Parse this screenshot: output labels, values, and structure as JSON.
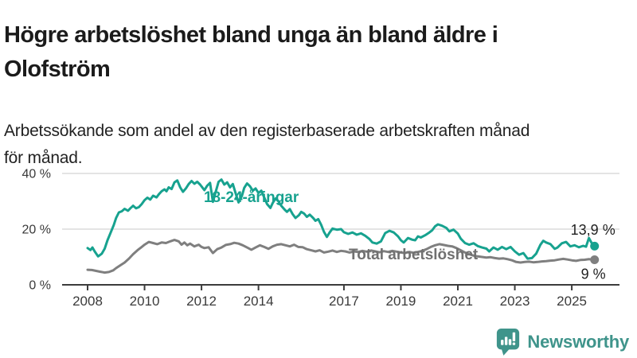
{
  "header": {
    "title": "Högre arbetslöshet bland unga än bland äldre i\nOlofström",
    "subtitle": "Arbetssökande som andel av den registerbaserade arbetskraften månad\nför månad."
  },
  "chart_data": {
    "type": "line",
    "unit": "%",
    "grid": "horizontal-only",
    "x_axis": {
      "ticks": [
        2008,
        2010,
        2012,
        2014,
        2017,
        2019,
        2021,
        2023,
        2025
      ],
      "tick_labels": [
        "2008",
        "2010",
        "2012",
        "2014",
        "2017",
        "2019",
        "2021",
        "2023",
        "2025"
      ],
      "range": [
        2007.1,
        2026.7
      ]
    },
    "y_axis": {
      "ticks": [
        0,
        20,
        40
      ],
      "tick_suffix": " %",
      "range": [
        0,
        45
      ]
    },
    "series": [
      {
        "name": "18-24-åringar",
        "color": "#17a28f",
        "label_color": "#17a28f",
        "label_at": {
          "year": 2012.08,
          "value": 29.7
        },
        "end_label": "13,9 %",
        "end_label_placement": "above",
        "end_value": 13.9,
        "points": [
          [
            2008.0,
            13.2
          ],
          [
            2008.1,
            12.5
          ],
          [
            2008.17,
            13.4
          ],
          [
            2008.25,
            12.0
          ],
          [
            2008.37,
            10.2
          ],
          [
            2008.5,
            11.2
          ],
          [
            2008.6,
            13.0
          ],
          [
            2008.7,
            16.0
          ],
          [
            2008.8,
            18.5
          ],
          [
            2008.92,
            21.5
          ],
          [
            2009.0,
            24.0
          ],
          [
            2009.1,
            26.0
          ],
          [
            2009.2,
            26.4
          ],
          [
            2009.3,
            27.3
          ],
          [
            2009.42,
            26.6
          ],
          [
            2009.5,
            27.5
          ],
          [
            2009.6,
            28.4
          ],
          [
            2009.7,
            27.5
          ],
          [
            2009.8,
            27.9
          ],
          [
            2009.9,
            29.0
          ],
          [
            2010.0,
            30.4
          ],
          [
            2010.1,
            31.3
          ],
          [
            2010.2,
            30.6
          ],
          [
            2010.3,
            32.0
          ],
          [
            2010.42,
            31.4
          ],
          [
            2010.5,
            32.5
          ],
          [
            2010.6,
            33.6
          ],
          [
            2010.7,
            34.3
          ],
          [
            2010.77,
            33.6
          ],
          [
            2010.85,
            35.0
          ],
          [
            2010.95,
            34.4
          ],
          [
            2011.05,
            36.8
          ],
          [
            2011.15,
            37.5
          ],
          [
            2011.25,
            35.0
          ],
          [
            2011.35,
            33.4
          ],
          [
            2011.45,
            34.6
          ],
          [
            2011.55,
            36.2
          ],
          [
            2011.65,
            37.3
          ],
          [
            2011.75,
            36.3
          ],
          [
            2011.85,
            37.0
          ],
          [
            2011.95,
            36.0
          ],
          [
            2012.1,
            34.0
          ],
          [
            2012.2,
            35.6
          ],
          [
            2012.3,
            36.6
          ],
          [
            2012.4,
            29.8
          ],
          [
            2012.5,
            33.5
          ],
          [
            2012.6,
            37.0
          ],
          [
            2012.7,
            37.8
          ],
          [
            2012.8,
            36.0
          ],
          [
            2012.9,
            36.8
          ],
          [
            2013.0,
            35.0
          ],
          [
            2013.1,
            36.2
          ],
          [
            2013.2,
            32.8
          ],
          [
            2013.3,
            29.6
          ],
          [
            2013.42,
            32.0
          ],
          [
            2013.5,
            34.8
          ],
          [
            2013.6,
            36.4
          ],
          [
            2013.7,
            35.4
          ],
          [
            2013.8,
            33.8
          ],
          [
            2013.9,
            34.6
          ],
          [
            2014.0,
            33.0
          ],
          [
            2014.1,
            33.8
          ],
          [
            2014.2,
            31.4
          ],
          [
            2014.3,
            29.0
          ],
          [
            2014.42,
            27.6
          ],
          [
            2014.5,
            29.4
          ],
          [
            2014.6,
            31.0
          ],
          [
            2014.7,
            30.0
          ],
          [
            2014.8,
            28.4
          ],
          [
            2014.92,
            27.0
          ],
          [
            2015.0,
            26.2
          ],
          [
            2015.1,
            27.2
          ],
          [
            2015.2,
            25.4
          ],
          [
            2015.3,
            24.0
          ],
          [
            2015.42,
            25.0
          ],
          [
            2015.5,
            26.2
          ],
          [
            2015.6,
            25.6
          ],
          [
            2015.7,
            24.4
          ],
          [
            2015.8,
            25.2
          ],
          [
            2015.92,
            24.0
          ],
          [
            2016.0,
            23.0
          ],
          [
            2016.1,
            23.6
          ],
          [
            2016.2,
            21.6
          ],
          [
            2016.3,
            19.0
          ],
          [
            2016.4,
            17.2
          ],
          [
            2016.5,
            18.8
          ],
          [
            2016.6,
            20.2
          ],
          [
            2016.75,
            19.8
          ],
          [
            2016.9,
            20.0
          ],
          [
            2017.0,
            18.9
          ],
          [
            2017.15,
            18.3
          ],
          [
            2017.3,
            18.8
          ],
          [
            2017.45,
            18.0
          ],
          [
            2017.6,
            18.5
          ],
          [
            2017.75,
            17.6
          ],
          [
            2017.9,
            16.4
          ],
          [
            2018.0,
            15.2
          ],
          [
            2018.15,
            14.8
          ],
          [
            2018.3,
            15.6
          ],
          [
            2018.45,
            18.6
          ],
          [
            2018.6,
            19.4
          ],
          [
            2018.75,
            18.8
          ],
          [
            2018.9,
            17.4
          ],
          [
            2019.0,
            16.0
          ],
          [
            2019.1,
            15.2
          ],
          [
            2019.25,
            16.8
          ],
          [
            2019.4,
            16.2
          ],
          [
            2019.5,
            16.0
          ],
          [
            2019.6,
            17.4
          ],
          [
            2019.7,
            17.0
          ],
          [
            2019.85,
            17.8
          ],
          [
            2020.0,
            18.8
          ],
          [
            2020.1,
            19.6
          ],
          [
            2020.2,
            21.0
          ],
          [
            2020.3,
            21.7
          ],
          [
            2020.45,
            21.2
          ],
          [
            2020.6,
            20.4
          ],
          [
            2020.7,
            19.2
          ],
          [
            2020.85,
            19.8
          ],
          [
            2021.0,
            18.4
          ],
          [
            2021.1,
            16.6
          ],
          [
            2021.25,
            15.0
          ],
          [
            2021.4,
            14.4
          ],
          [
            2021.55,
            14.9
          ],
          [
            2021.7,
            13.9
          ],
          [
            2021.85,
            13.4
          ],
          [
            2022.0,
            13.0
          ],
          [
            2022.1,
            12.0
          ],
          [
            2022.25,
            13.4
          ],
          [
            2022.4,
            12.6
          ],
          [
            2022.55,
            13.6
          ],
          [
            2022.7,
            12.8
          ],
          [
            2022.85,
            13.6
          ],
          [
            2023.0,
            12.0
          ],
          [
            2023.15,
            10.8
          ],
          [
            2023.3,
            11.4
          ],
          [
            2023.45,
            9.4
          ],
          [
            2023.6,
            9.6
          ],
          [
            2023.75,
            11.2
          ],
          [
            2023.9,
            14.4
          ],
          [
            2024.0,
            15.8
          ],
          [
            2024.1,
            15.2
          ],
          [
            2024.25,
            14.6
          ],
          [
            2024.4,
            12.9
          ],
          [
            2024.5,
            13.4
          ],
          [
            2024.65,
            14.9
          ],
          [
            2024.8,
            15.4
          ],
          [
            2024.95,
            13.8
          ],
          [
            2025.1,
            14.2
          ],
          [
            2025.25,
            13.5
          ],
          [
            2025.4,
            14.0
          ],
          [
            2025.5,
            13.7
          ],
          [
            2025.6,
            16.8
          ],
          [
            2025.7,
            15.0
          ],
          [
            2025.8,
            13.9
          ]
        ]
      },
      {
        "name": "Total arbetslöshet",
        "color": "#7f7f7f",
        "label_color": "#707070",
        "label_at": {
          "year": 2017.17,
          "value": 9.15
        },
        "end_label": "9 %",
        "end_label_placement": "below",
        "end_value": 9,
        "points": [
          [
            2008.0,
            5.4
          ],
          [
            2008.15,
            5.3
          ],
          [
            2008.3,
            5.0
          ],
          [
            2008.45,
            4.7
          ],
          [
            2008.6,
            4.4
          ],
          [
            2008.75,
            4.6
          ],
          [
            2008.9,
            5.2
          ],
          [
            2009.0,
            6.0
          ],
          [
            2009.15,
            7.0
          ],
          [
            2009.3,
            8.0
          ],
          [
            2009.45,
            9.4
          ],
          [
            2009.6,
            11.0
          ],
          [
            2009.75,
            12.4
          ],
          [
            2009.9,
            13.6
          ],
          [
            2010.0,
            14.4
          ],
          [
            2010.15,
            15.4
          ],
          [
            2010.3,
            15.0
          ],
          [
            2010.45,
            14.6
          ],
          [
            2010.6,
            15.2
          ],
          [
            2010.75,
            15.0
          ],
          [
            2010.9,
            15.6
          ],
          [
            2011.05,
            16.1
          ],
          [
            2011.2,
            15.6
          ],
          [
            2011.3,
            14.4
          ],
          [
            2011.4,
            15.2
          ],
          [
            2011.5,
            14.2
          ],
          [
            2011.6,
            14.8
          ],
          [
            2011.75,
            13.8
          ],
          [
            2011.9,
            14.4
          ],
          [
            2012.0,
            13.6
          ],
          [
            2012.1,
            13.2
          ],
          [
            2012.25,
            13.5
          ],
          [
            2012.4,
            11.4
          ],
          [
            2012.55,
            12.8
          ],
          [
            2012.7,
            13.4
          ],
          [
            2012.85,
            14.3
          ],
          [
            2013.0,
            14.6
          ],
          [
            2013.15,
            15.1
          ],
          [
            2013.3,
            14.8
          ],
          [
            2013.45,
            14.2
          ],
          [
            2013.6,
            13.4
          ],
          [
            2013.75,
            12.6
          ],
          [
            2013.9,
            13.4
          ],
          [
            2014.05,
            14.2
          ],
          [
            2014.2,
            13.6
          ],
          [
            2014.35,
            12.9
          ],
          [
            2014.5,
            13.8
          ],
          [
            2014.65,
            14.4
          ],
          [
            2014.8,
            14.6
          ],
          [
            2014.95,
            14.2
          ],
          [
            2015.1,
            13.8
          ],
          [
            2015.25,
            14.4
          ],
          [
            2015.4,
            13.6
          ],
          [
            2015.55,
            13.5
          ],
          [
            2015.7,
            12.8
          ],
          [
            2015.85,
            12.4
          ],
          [
            2016.0,
            12.0
          ],
          [
            2016.15,
            12.4
          ],
          [
            2016.3,
            11.6
          ],
          [
            2016.45,
            11.9
          ],
          [
            2016.6,
            12.3
          ],
          [
            2016.75,
            11.8
          ],
          [
            2016.9,
            12.2
          ],
          [
            2017.05,
            12.0
          ],
          [
            2017.2,
            11.6
          ],
          [
            2017.35,
            12.0
          ],
          [
            2017.5,
            11.8
          ],
          [
            2017.65,
            12.2
          ],
          [
            2017.8,
            11.9
          ],
          [
            2017.95,
            12.3
          ],
          [
            2018.1,
            12.0
          ],
          [
            2018.25,
            11.7
          ],
          [
            2018.4,
            12.1
          ],
          [
            2018.55,
            11.8
          ],
          [
            2018.7,
            12.2
          ],
          [
            2018.85,
            11.9
          ],
          [
            2019.0,
            11.6
          ],
          [
            2019.15,
            11.4
          ],
          [
            2019.3,
            11.8
          ],
          [
            2019.45,
            11.5
          ],
          [
            2019.6,
            11.8
          ],
          [
            2019.75,
            12.2
          ],
          [
            2019.9,
            12.8
          ],
          [
            2020.05,
            13.6
          ],
          [
            2020.2,
            14.2
          ],
          [
            2020.35,
            14.6
          ],
          [
            2020.5,
            14.3
          ],
          [
            2020.65,
            14.0
          ],
          [
            2020.8,
            13.8
          ],
          [
            2020.95,
            13.2
          ],
          [
            2021.1,
            12.4
          ],
          [
            2021.25,
            11.6
          ],
          [
            2021.4,
            11.0
          ],
          [
            2021.55,
            10.5
          ],
          [
            2021.7,
            10.2
          ],
          [
            2021.85,
            10.0
          ],
          [
            2022.0,
            9.8
          ],
          [
            2022.15,
            9.9
          ],
          [
            2022.3,
            9.6
          ],
          [
            2022.45,
            9.4
          ],
          [
            2022.6,
            9.5
          ],
          [
            2022.75,
            9.2
          ],
          [
            2022.9,
            8.8
          ],
          [
            2023.05,
            8.2
          ],
          [
            2023.2,
            8.0
          ],
          [
            2023.35,
            8.2
          ],
          [
            2023.5,
            8.3
          ],
          [
            2023.65,
            8.1
          ],
          [
            2023.8,
            8.2
          ],
          [
            2023.95,
            8.4
          ],
          [
            2024.1,
            8.5
          ],
          [
            2024.25,
            8.7
          ],
          [
            2024.4,
            8.8
          ],
          [
            2024.55,
            9.1
          ],
          [
            2024.7,
            9.3
          ],
          [
            2024.85,
            9.1
          ],
          [
            2025.0,
            8.8
          ],
          [
            2025.15,
            8.6
          ],
          [
            2025.3,
            8.9
          ],
          [
            2025.45,
            9.0
          ],
          [
            2025.6,
            9.2
          ],
          [
            2025.8,
            9.0
          ]
        ]
      }
    ],
    "colors": {
      "grid": "#dcdcdc",
      "axis": "#3c3c3c",
      "tick_text": "#3a3a3a",
      "end_label_text": "#1f1f1f"
    }
  },
  "branding": {
    "name": "Newsworthy",
    "color": "#3f948b",
    "icon": "newsworthy-bar-chart-bubble-icon"
  }
}
